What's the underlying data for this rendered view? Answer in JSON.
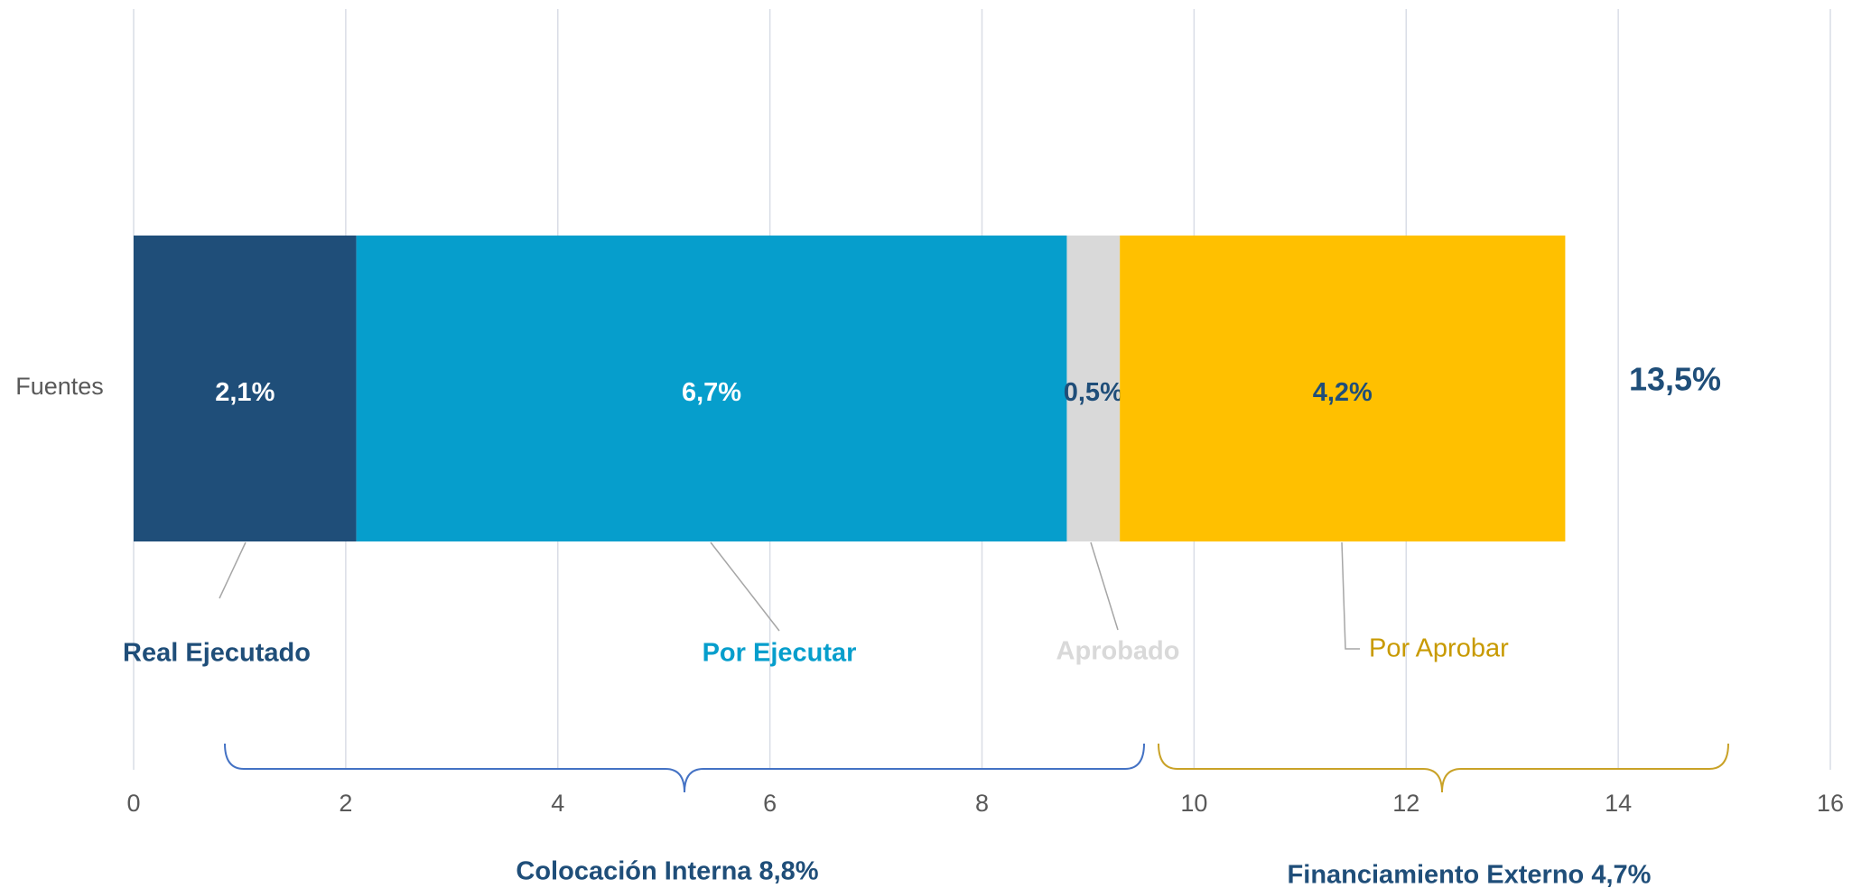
{
  "chart_data": {
    "type": "bar",
    "orientation": "horizontal",
    "stacked": true,
    "categories": [
      "Fuentes"
    ],
    "series": [
      {
        "name": "Real Ejecutado",
        "color": "#1f4e79",
        "values": [
          2.1
        ],
        "value_labels": [
          "2,1%"
        ]
      },
      {
        "name": "Por Ejecutar",
        "color": "#069ecc",
        "values": [
          6.7
        ],
        "value_labels": [
          "6,7%"
        ]
      },
      {
        "name": "Aprobado",
        "color": "#d9d9d9",
        "values": [
          0.5
        ],
        "value_labels": [
          "0,5%"
        ]
      },
      {
        "name": "Por Aprobar",
        "color": "#ffc000",
        "values": [
          4.2
        ],
        "value_labels": [
          "4,2%"
        ]
      }
    ],
    "xlim": [
      0,
      16
    ],
    "xticks": [
      0,
      2,
      4,
      6,
      8,
      10,
      12,
      14,
      16
    ],
    "grid": true,
    "annotations": [
      "13,5%",
      "Colocación Interna 8,8%",
      "Financiamiento Externo 4,7%"
    ]
  }
}
